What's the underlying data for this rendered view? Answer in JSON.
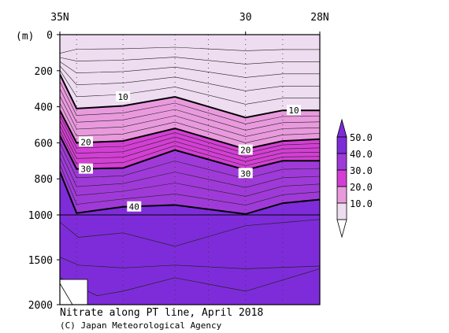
{
  "chart_data": {
    "type": "contour",
    "title": "Nitrate along PT line, April 2018",
    "credit": "(C) Japan Meteorological Agency",
    "x_axis": {
      "labels": [
        {
          "text": "35N",
          "lat": 35
        },
        {
          "text": "30",
          "lat": 30
        },
        {
          "text": "28N",
          "lat": 28
        }
      ],
      "range": [
        35,
        28
      ]
    },
    "y_axis": {
      "unit": "(m)",
      "ticks": [
        0,
        200,
        400,
        600,
        800,
        1000,
        1500,
        2000
      ],
      "range": [
        0,
        2000
      ],
      "inverted": true
    },
    "colorbar": {
      "labels": [
        "50.0",
        "40.0",
        "30.0",
        "20.0",
        "10.0"
      ],
      "levels": [
        10,
        20,
        30,
        40,
        50
      ],
      "colors": [
        "#ffffff",
        "#eedcf0",
        "#e99add",
        "#d33fd4",
        "#9f3ad8",
        "#7e2cd9"
      ]
    },
    "contour_labels": [
      {
        "text": "10",
        "lat": 35,
        "depth": 0
      },
      {
        "text": "10",
        "lat": 35,
        "depth": 0
      },
      {
        "text": "20",
        "lat": 35,
        "depth": 0
      },
      {
        "text": "20",
        "lat": 35,
        "depth": 0
      },
      {
        "text": "30",
        "lat": 35,
        "depth": 0
      },
      {
        "text": "30",
        "lat": 35,
        "depth": 0
      },
      {
        "text": "40",
        "lat": 35,
        "depth": 0
      }
    ],
    "contour_label_positions": [
      {
        "text": "10",
        "lat": 33.3,
        "depth": 345
      },
      {
        "text": "10",
        "lat": 28.7,
        "depth": 420
      },
      {
        "text": "20",
        "lat": 34.3,
        "depth": 595
      },
      {
        "text": "20",
        "lat": 30.0,
        "depth": 640
      },
      {
        "text": "30",
        "lat": 34.3,
        "depth": 745
      },
      {
        "text": "30",
        "lat": 30.0,
        "depth": 770
      },
      {
        "text": "40",
        "lat": 33.0,
        "depth": 955
      }
    ],
    "isolines": [
      {
        "level": 10,
        "lat": [
          35.0,
          34.55,
          33.3,
          31.9,
          30.0,
          29.0,
          28.0
        ],
        "depth": [
          220,
          410,
          395,
          345,
          460,
          420,
          420
        ]
      },
      {
        "level": 20,
        "lat": [
          35.0,
          34.55,
          33.3,
          31.9,
          30.0,
          29.0,
          28.0
        ],
        "depth": [
          420,
          600,
          590,
          520,
          635,
          590,
          580
        ]
      },
      {
        "level": 30,
        "lat": [
          35.0,
          34.55,
          33.3,
          31.9,
          30.0,
          29.0,
          28.0
        ],
        "depth": [
          560,
          745,
          740,
          640,
          750,
          700,
          700
        ]
      },
      {
        "level": 40,
        "lat": [
          35.0,
          34.55,
          33.3,
          31.9,
          30.0,
          29.0,
          28.0
        ],
        "depth": [
          760,
          990,
          955,
          945,
          995,
          935,
          915
        ]
      }
    ]
  }
}
